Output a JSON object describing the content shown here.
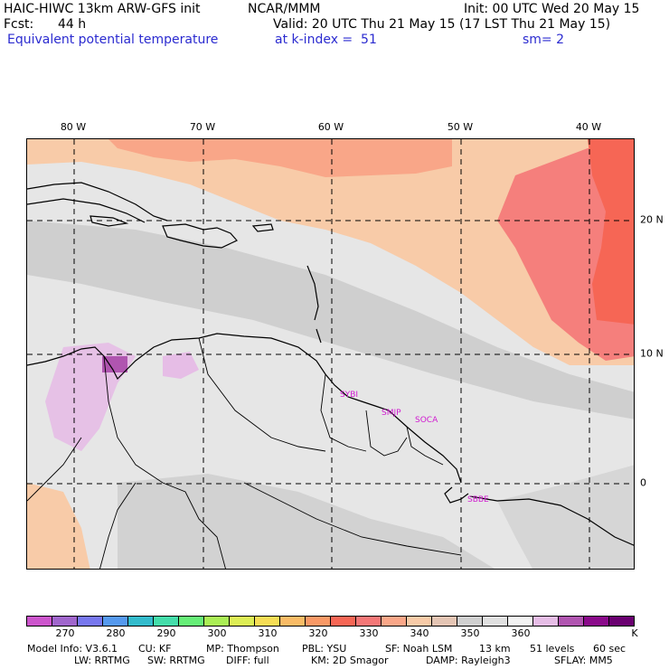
{
  "header": {
    "model": "HAIC-HIWC 13km ARW-GFS init",
    "org": "NCAR/MMM",
    "init": "Init: 00 UTC Wed 20 May 15",
    "fcst_label": "Fcst:",
    "fcst_value": "44 h",
    "valid": "Valid: 20 UTC Thu 21 May 15 (17 LST Thu 21 May 15)",
    "field": "Equivalent potential temperature",
    "level": "at k-index =  51",
    "smooth": "sm= 2"
  },
  "map": {
    "lon_labels": [
      "80 W",
      "70 W",
      "60 W",
      "50 W",
      "40 W"
    ],
    "lat_labels": [
      "20 N",
      "10 N",
      "0"
    ],
    "stations": [
      "SYBI",
      "SMJP",
      "SOCA",
      "SBBE"
    ]
  },
  "colorbar": {
    "colors": [
      "#cc55cc",
      "#a066cc",
      "#7777ee",
      "#5599ee",
      "#33bbcc",
      "#44ddaa",
      "#66ee77",
      "#aaee55",
      "#ddee55",
      "#f6dd55",
      "#f9bb66",
      "#f99966",
      "#f66655",
      "#f47777",
      "#f9a688",
      "#f8cba8",
      "#e4c5b4",
      "#d0d0d0",
      "#e0e0e0",
      "#f3f3f3",
      "#e6bde6",
      "#b055b0",
      "#8a0a8a",
      "#6a0070"
    ],
    "labels": [
      "270",
      "280",
      "290",
      "300",
      "310",
      "320",
      "330",
      "340",
      "350",
      "360",
      "K"
    ]
  },
  "footer": {
    "line1": [
      "Model Info: V3.6.1",
      "CU: KF",
      "MP: Thompson",
      "PBL: YSU",
      "SF: Noah LSM",
      "13 km",
      "51 levels",
      "60 sec"
    ],
    "line2": [
      "LW: RRTMG",
      "SW: RRTMG",
      "DIFF: full",
      "KM: 2D Smagor",
      "DAMP: Rayleigh3",
      "SFLAY: MM5"
    ]
  }
}
